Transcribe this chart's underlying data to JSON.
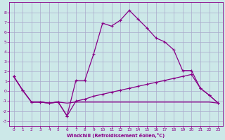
{
  "xlabel": "Windchill (Refroidissement éolien,°C)",
  "background_color": "#cce8e8",
  "grid_color": "#aaaacc",
  "line_color": "#880088",
  "xlim": [
    -0.5,
    23.5
  ],
  "ylim": [
    -3.5,
    9.0
  ],
  "xticks": [
    0,
    1,
    2,
    3,
    4,
    5,
    6,
    7,
    8,
    9,
    10,
    11,
    12,
    13,
    14,
    15,
    16,
    17,
    18,
    19,
    20,
    21,
    22,
    23
  ],
  "yticks": [
    -3,
    -2,
    -1,
    0,
    1,
    2,
    3,
    4,
    5,
    6,
    7,
    8
  ],
  "line1_x": [
    0,
    1,
    2,
    3,
    4,
    5,
    6,
    7,
    8,
    9,
    10,
    11,
    12,
    13,
    14,
    15,
    16,
    17,
    18,
    19,
    20,
    21,
    22,
    23
  ],
  "line1_y": [
    1.5,
    0.1,
    -1.1,
    -1.1,
    -1.2,
    -1.1,
    -1.2,
    -1.1,
    -1.1,
    -1.1,
    -1.1,
    -1.1,
    -1.1,
    -1.1,
    -1.1,
    -1.1,
    -1.1,
    -1.1,
    -1.1,
    -1.1,
    -1.1,
    -1.1,
    -1.1,
    -1.2
  ],
  "line2_x": [
    0,
    1,
    2,
    3,
    4,
    5,
    6,
    7,
    8,
    9,
    10,
    11,
    12,
    13,
    14,
    15,
    16,
    17,
    18,
    19,
    20,
    21,
    22,
    23
  ],
  "line2_y": [
    1.5,
    0.1,
    -1.1,
    -1.1,
    -1.2,
    -1.1,
    -2.5,
    -1.0,
    -0.8,
    -0.5,
    -0.3,
    -0.1,
    0.1,
    0.3,
    0.5,
    0.7,
    0.9,
    1.1,
    1.3,
    1.5,
    1.7,
    0.3,
    -0.4,
    -1.2
  ],
  "line3_x": [
    0,
    1,
    2,
    3,
    4,
    5,
    6,
    7,
    8,
    9,
    10,
    11,
    12,
    13,
    14,
    15,
    16,
    17,
    18,
    19,
    20,
    21,
    22,
    23
  ],
  "line3_y": [
    1.5,
    0.1,
    -1.1,
    -1.1,
    -1.2,
    -1.1,
    -2.5,
    1.1,
    1.1,
    3.8,
    6.9,
    6.6,
    7.2,
    8.2,
    7.3,
    6.4,
    5.4,
    5.0,
    4.2,
    2.1,
    2.1,
    0.3,
    -0.4,
    -1.2
  ]
}
